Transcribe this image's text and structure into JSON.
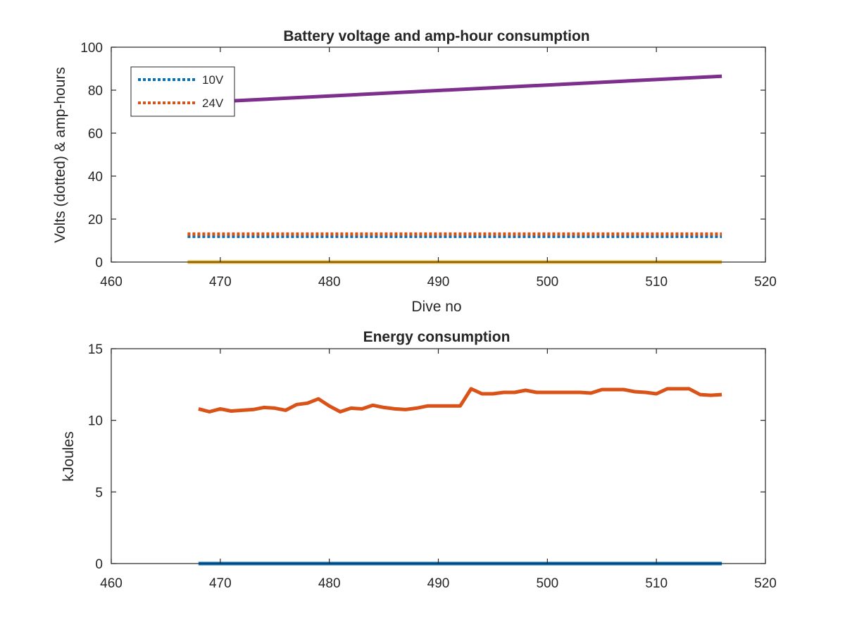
{
  "colors": {
    "blue": "#0072BD",
    "orange": "#D95319",
    "yellow": "#EDB120",
    "purple": "#7E2F8E",
    "axis": "#262626"
  },
  "chart_data": [
    {
      "type": "line",
      "title": "Battery voltage and amp-hour consumption",
      "xlabel": "Dive no",
      "ylabel": "Volts (dotted) & amp-hours",
      "xlim": [
        460,
        520
      ],
      "ylim": [
        0,
        100
      ],
      "xticks": [
        460,
        470,
        480,
        490,
        500,
        510,
        520
      ],
      "yticks": [
        0,
        20,
        40,
        60,
        80,
        100
      ],
      "legend": {
        "placement": "top-left",
        "entries": [
          "10V",
          "24V"
        ]
      },
      "grid": false,
      "series": [
        {
          "name": "10V",
          "color": "blue",
          "style": "dotted",
          "x": [
            467,
            516
          ],
          "y": [
            12,
            12
          ]
        },
        {
          "name": "24V",
          "color": "orange",
          "style": "dotted",
          "x": [
            467,
            516
          ],
          "y": [
            13,
            13
          ]
        },
        {
          "color": "yellow",
          "style": "solid",
          "x": [
            467,
            516
          ],
          "y": [
            0,
            0
          ]
        },
        {
          "color": "purple",
          "style": "solid",
          "x": [
            471,
            516
          ],
          "y": [
            75,
            86.5
          ]
        }
      ]
    },
    {
      "type": "line",
      "title": "Energy consumption",
      "xlabel": "",
      "ylabel": "kJoules",
      "xlim": [
        460,
        520
      ],
      "ylim": [
        0,
        15
      ],
      "xticks": [
        460,
        470,
        480,
        490,
        500,
        510,
        520
      ],
      "yticks": [
        0,
        5,
        10,
        15
      ],
      "grid": false,
      "series": [
        {
          "color": "blue",
          "style": "solid",
          "x": [
            468,
            516
          ],
          "y": [
            0,
            0
          ]
        },
        {
          "color": "orange",
          "style": "solid",
          "x": [
            468,
            469,
            470,
            471,
            472,
            473,
            474,
            475,
            476,
            477,
            478,
            479,
            480,
            481,
            482,
            483,
            484,
            485,
            486,
            487,
            488,
            489,
            490,
            491,
            492,
            493,
            494,
            495,
            496,
            497,
            498,
            499,
            500,
            501,
            502,
            503,
            504,
            505,
            506,
            507,
            508,
            509,
            510,
            511,
            512,
            513,
            514,
            515,
            516
          ],
          "y": [
            10.8,
            10.6,
            10.8,
            10.65,
            10.7,
            10.75,
            10.9,
            10.85,
            10.7,
            11.1,
            11.2,
            11.5,
            11.0,
            10.6,
            10.85,
            10.8,
            11.05,
            10.9,
            10.8,
            10.75,
            10.85,
            11.0,
            11.0,
            11.0,
            11.0,
            12.2,
            11.85,
            11.85,
            11.95,
            11.95,
            12.1,
            11.95,
            11.95,
            11.95,
            11.95,
            11.95,
            11.9,
            12.15,
            12.15,
            12.15,
            12.0,
            11.95,
            11.85,
            12.2,
            12.2,
            12.2,
            11.8,
            11.75,
            11.8
          ]
        }
      ]
    }
  ]
}
